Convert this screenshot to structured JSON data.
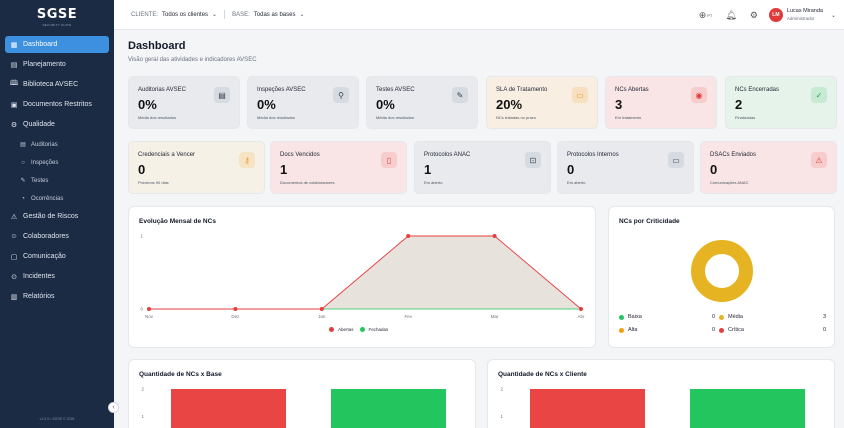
{
  "app": {
    "logo": "SGSE",
    "logo_sub": "SECURITY SUITE"
  },
  "sidebar": {
    "items": [
      {
        "label": "Dashboard",
        "icon": "grid-icon",
        "glyph": "▦"
      },
      {
        "label": "Planejamento",
        "icon": "calendar-icon",
        "glyph": "▤"
      },
      {
        "label": "Biblioteca AVSEC",
        "icon": "book-icon",
        "glyph": "🕮"
      },
      {
        "label": "Documentos Restritos",
        "icon": "lock-icon",
        "glyph": "▣"
      },
      {
        "label": "Qualidade",
        "icon": "settings-icon",
        "glyph": "⚙"
      }
    ],
    "subitems": [
      {
        "label": "Auditorias",
        "icon": "clipboard-icon",
        "glyph": "▤"
      },
      {
        "label": "Inspeções",
        "icon": "search-icon",
        "glyph": "○"
      },
      {
        "label": "Testes",
        "icon": "pen-icon",
        "glyph": "✎"
      },
      {
        "label": "Ocorrências",
        "icon": "alert-circle-icon",
        "glyph": "◔"
      }
    ],
    "items2": [
      {
        "label": "Gestão de Riscos",
        "icon": "warning-icon",
        "glyph": "⚠"
      },
      {
        "label": "Colaboradores",
        "icon": "users-icon",
        "glyph": "☺"
      },
      {
        "label": "Comunicação",
        "icon": "chat-icon",
        "glyph": "▢"
      },
      {
        "label": "Incidentes",
        "icon": "incident-icon",
        "glyph": "⊙"
      },
      {
        "label": "Relatórios",
        "icon": "bar-chart-icon",
        "glyph": "▥"
      }
    ],
    "version": "v1.0.0 • SGSE © 2025"
  },
  "topbar": {
    "client_label": "CLIENTE:",
    "client_value": "Todos os clientes",
    "base_label": "BASE:",
    "base_value": "Todas as bases",
    "lang": "PT",
    "user_initials": "LM",
    "user_name": "Lucas Miranda",
    "user_role": "Administrador"
  },
  "page": {
    "title": "Dashboard",
    "subtitle": "Visão geral das atividades e indicadores AVSEC"
  },
  "cards_row1": [
    {
      "title": "Auditorias AVSEC",
      "value": "0%",
      "sub": "Média dos resultados",
      "icon": "clipboard-icon",
      "glyph": "▤",
      "bg": "#e8eaed",
      "iconbg": "#d6dae1",
      "iconcolor": "#374151"
    },
    {
      "title": "Inspeções AVSEC",
      "value": "0%",
      "sub": "Média dos resultados",
      "icon": "search-icon",
      "glyph": "⚲",
      "bg": "#e8eaed",
      "iconbg": "#d6dae1",
      "iconcolor": "#374151"
    },
    {
      "title": "Testes AVSEC",
      "value": "0%",
      "sub": "Média dos resultados",
      "icon": "pen-icon",
      "glyph": "✎",
      "bg": "#e8eaed",
      "iconbg": "#d6dae1",
      "iconcolor": "#374151"
    },
    {
      "title": "SLA de Tratamento",
      "value": "20%",
      "sub": "NCs tratadas no prazo",
      "icon": "calendar-icon",
      "glyph": "▭",
      "bg": "#f8efe2",
      "iconbg": "#f7dfc0",
      "iconcolor": "#e69a2e"
    },
    {
      "title": "NCs Abertas",
      "value": "3",
      "sub": "Em tratamento",
      "icon": "alert-circle-icon",
      "glyph": "◉",
      "bg": "#f9e5e5",
      "iconbg": "#f7cccc",
      "iconcolor": "#e03a3a"
    },
    {
      "title": "NCs Encerradas",
      "value": "2",
      "sub": "Finalizadas",
      "icon": "check-circle-icon",
      "glyph": "✓",
      "bg": "#e6f3ea",
      "iconbg": "#c7ead3",
      "iconcolor": "#1f9d55"
    }
  ],
  "cards_row2": [
    {
      "title": "Credenciais a Vencer",
      "value": "0",
      "sub": "Próximos 90 dias",
      "icon": "key-icon",
      "glyph": "⚷",
      "bg": "#f6f1e6",
      "iconbg": "#f6e3c3",
      "iconcolor": "#e69a2e"
    },
    {
      "title": "Docs Vencidos",
      "value": "1",
      "sub": "Documentos de colaboradores",
      "icon": "file-icon",
      "glyph": "▯",
      "bg": "#f9e5e5",
      "iconbg": "#f7cccc",
      "iconcolor": "#e03a3a"
    },
    {
      "title": "Protocolos ANAC",
      "value": "1",
      "sub": "Em aberto",
      "icon": "inbox-icon",
      "glyph": "⊡",
      "bg": "#e8eaed",
      "iconbg": "#d6dae1",
      "iconcolor": "#374151"
    },
    {
      "title": "Protocolos Internos",
      "value": "0",
      "sub": "Em aberto",
      "icon": "message-icon",
      "glyph": "▭",
      "bg": "#e8eaed",
      "iconbg": "#d6dae1",
      "iconcolor": "#374151"
    },
    {
      "title": "DSACs Enviados",
      "value": "0",
      "sub": "Comunicações ANAC",
      "icon": "warning-icon",
      "glyph": "⚠",
      "bg": "#f9e5e5",
      "iconbg": "#f7cccc",
      "iconcolor": "#e03a3a"
    }
  ],
  "line_panel": {
    "title": "Evolução Mensal de NCs",
    "legend_open": "Abertas",
    "legend_closed": "Fechadas",
    "color_open": "#e53e3e",
    "color_closed": "#22c55e",
    "area_color": "#e7e3dc"
  },
  "donut_panel": {
    "title": "NCs por Criticidade",
    "ring_color": "#e6b422",
    "legend": [
      {
        "label": "Baixa",
        "value": "0",
        "color": "#22c55e"
      },
      {
        "label": "Média",
        "value": "3",
        "color": "#e6b422"
      },
      {
        "label": "Alta",
        "value": "0",
        "color": "#f59e0b"
      },
      {
        "label": "Crítica",
        "value": "0",
        "color": "#e53e3e"
      }
    ]
  },
  "base_panel": {
    "title": "Quantidade de NCs x Base"
  },
  "client_panel": {
    "title": "Quantidade de NCs x Cliente"
  },
  "chart_data": [
    {
      "type": "line",
      "title": "Evolução Mensal de NCs",
      "categories": [
        "Nov",
        "Dez",
        "Jan",
        "Fev",
        "Mar",
        "Abr"
      ],
      "series": [
        {
          "name": "Abertas",
          "values": [
            0,
            0,
            0,
            1,
            1,
            0
          ]
        },
        {
          "name": "Fechadas",
          "values": [
            0,
            0,
            0,
            0,
            0,
            0
          ]
        }
      ],
      "ylim": [
        0,
        1
      ],
      "yticks": [
        "0",
        "1"
      ],
      "legend": "bottom"
    },
    {
      "type": "pie",
      "title": "NCs por Criticidade",
      "categories": [
        "Baixa",
        "Média",
        "Alta",
        "Crítica"
      ],
      "values": [
        0,
        3,
        0,
        0
      ]
    },
    {
      "type": "bar",
      "title": "Quantidade de NCs x Base",
      "series": [
        {
          "values": [
            2
          ]
        },
        {
          "values": [
            2
          ]
        }
      ],
      "ylim": [
        0,
        2
      ],
      "yticks": [
        "1",
        "2"
      ]
    },
    {
      "type": "bar",
      "title": "Quantidade de NCs x Cliente",
      "series": [
        {
          "values": [
            2
          ]
        },
        {
          "values": [
            2
          ]
        }
      ],
      "ylim": [
        0,
        2
      ],
      "yticks": [
        "1",
        "2"
      ]
    }
  ]
}
